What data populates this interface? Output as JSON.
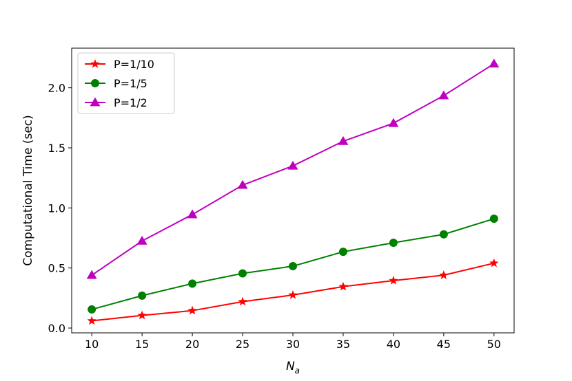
{
  "chart_data": {
    "type": "line",
    "xlabel_main": "N",
    "xlabel_sub": "a",
    "ylabel": "Computational Time (sec)",
    "x": [
      10,
      15,
      20,
      25,
      30,
      35,
      40,
      45,
      50
    ],
    "xlim": [
      8,
      52
    ],
    "ylim": [
      -0.04,
      2.33
    ],
    "xticks": [
      10,
      15,
      20,
      25,
      30,
      35,
      40,
      45,
      50
    ],
    "yticks": [
      0.0,
      0.5,
      1.0,
      1.5,
      2.0
    ],
    "ytick_labels": [
      "0.0",
      "0.5",
      "1.0",
      "1.5",
      "2.0"
    ],
    "grid": false,
    "legend_position": "top-left",
    "series": [
      {
        "name": "P=1/10",
        "color": "#ff0000",
        "marker": "star",
        "values": [
          0.06,
          0.105,
          0.145,
          0.22,
          0.275,
          0.345,
          0.395,
          0.44,
          0.54
        ]
      },
      {
        "name": "P=1/5",
        "color": "#008000",
        "marker": "circle",
        "values": [
          0.155,
          0.27,
          0.37,
          0.455,
          0.515,
          0.635,
          0.71,
          0.78,
          0.91
        ]
      },
      {
        "name": "P=1/2",
        "color": "#bf00bf",
        "marker": "triangle",
        "values": [
          0.44,
          0.725,
          0.945,
          1.19,
          1.35,
          1.555,
          1.705,
          1.935,
          2.2
        ]
      }
    ]
  }
}
